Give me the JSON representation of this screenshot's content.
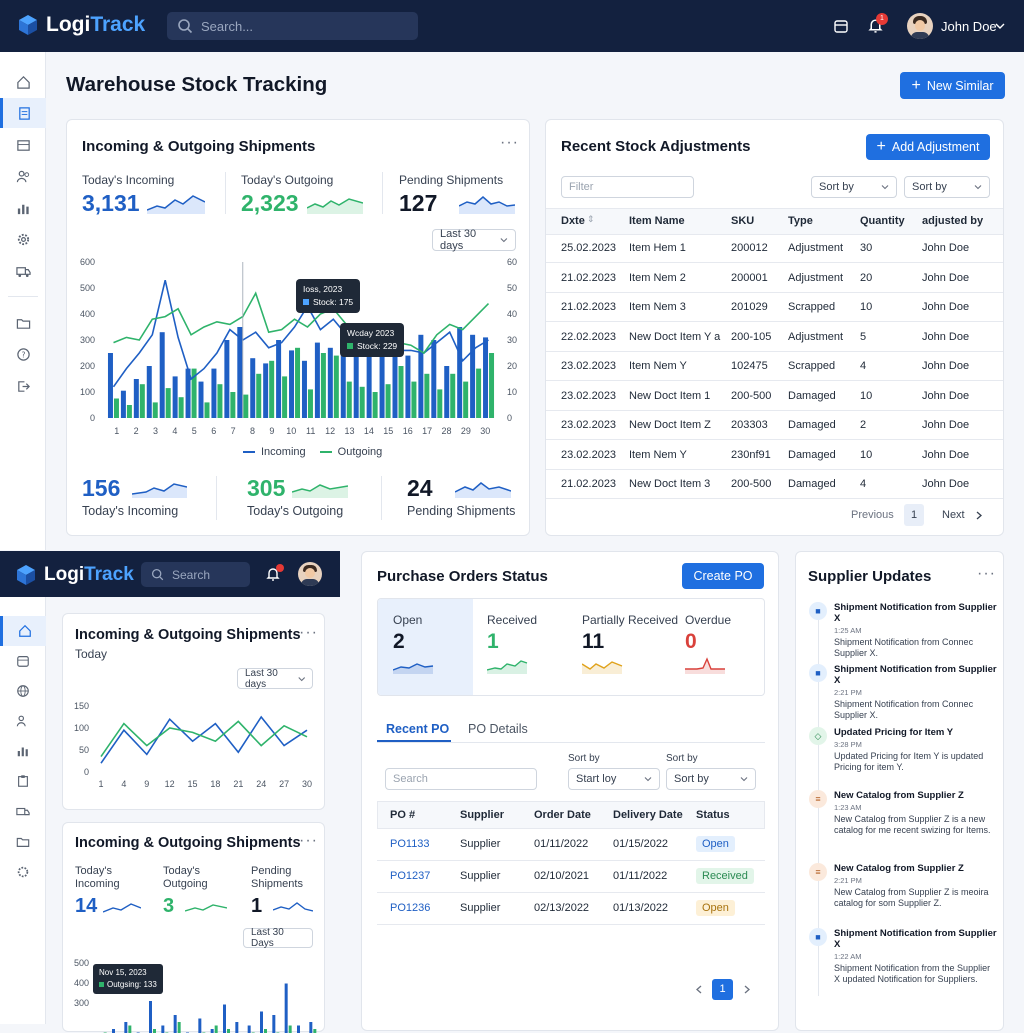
{
  "app": {
    "brand_a": "Logi",
    "brand_b": "Track",
    "search_placeholder": "Search...",
    "user_name": "John Doe",
    "notif_count": "1"
  },
  "page": {
    "title": "Warehouse Stock Tracking",
    "new_button": "New Similar"
  },
  "shipments": {
    "title": "Incoming & Outgoing Shipments",
    "kpis": [
      {
        "label": "Today's Incoming",
        "value": "3,131",
        "color": "#1f5fc4"
      },
      {
        "label": "Today's Outgoing",
        "value": "2,323",
        "color": "#2fb36b"
      },
      {
        "label": "Pending Shipments",
        "value": "127",
        "color": "#111827"
      }
    ],
    "range": "Last 30 days",
    "tooltip1": {
      "title": "Ioss, 2023",
      "line": "Stock: 175"
    },
    "tooltip2": {
      "title": "Wcday 2023",
      "line": "Stock: 229"
    },
    "legend_in": "Incoming",
    "legend_out": "Outgoing",
    "bottom": [
      {
        "value": "156",
        "label": "Today's Incoming",
        "color": "#1f5fc4"
      },
      {
        "value": "305",
        "label": "Today's Outgoing",
        "color": "#2fb36b"
      },
      {
        "value": "24",
        "label": "Pending Shipments",
        "color": "#111827"
      }
    ]
  },
  "chart_data": [
    {
      "type": "bar",
      "categories": [
        "1",
        "2",
        "3",
        "4",
        "5",
        "6",
        "7",
        "8",
        "9",
        "10",
        "11",
        "12",
        "13",
        "14",
        "15",
        "16",
        "17",
        "18",
        "19",
        "20",
        "21",
        "22",
        "23",
        "24",
        "25",
        "26",
        "27",
        "28",
        "29",
        "30"
      ],
      "x_tick_labels": [
        "1",
        "2",
        "3",
        "4",
        "5",
        "6",
        "7",
        "8",
        "9",
        "10",
        "11",
        "12",
        "13",
        "14",
        "15",
        "16",
        "17",
        "28",
        "29",
        "30"
      ],
      "y_ticks_left": [
        "600",
        "500",
        "400",
        "300",
        "200",
        "100",
        "0"
      ],
      "y_ticks_right": [
        "60",
        "50",
        "40",
        "30",
        "20",
        "10",
        "0"
      ],
      "ylim": [
        0,
        600
      ],
      "series": [
        {
          "name": "Incoming",
          "color": "#1f5fc4",
          "values": [
            250,
            105,
            150,
            200,
            330,
            160,
            190,
            140,
            190,
            300,
            350,
            230,
            210,
            300,
            260,
            220,
            290,
            270,
            300,
            340,
            270,
            310,
            280,
            240,
            320,
            300,
            200,
            350,
            320,
            310
          ]
        },
        {
          "name": "Outgoing",
          "color": "#2fb36b",
          "values": [
            75,
            50,
            130,
            60,
            115,
            80,
            190,
            60,
            130,
            100,
            90,
            170,
            220,
            160,
            270,
            110,
            250,
            240,
            140,
            120,
            100,
            130,
            200,
            140,
            170,
            110,
            170,
            140,
            190,
            250
          ]
        },
        {
          "name": "Incoming trend",
          "color": "#1f5fc4",
          "values": [
            120,
            190,
            250,
            320,
            530,
            310,
            150,
            190,
            250,
            340,
            300,
            330,
            270,
            290,
            350,
            430,
            340,
            380,
            320,
            300,
            290,
            280,
            260,
            260,
            250,
            290,
            330,
            220,
            270,
            300
          ]
        },
        {
          "name": "Outgoing trend",
          "color": "#2fb36b",
          "values": [
            290,
            310,
            300,
            380,
            390,
            420,
            320,
            350,
            370,
            360,
            390,
            480,
            330,
            340,
            380,
            350,
            400,
            420,
            360,
            330,
            300,
            310,
            290,
            280,
            250,
            320,
            360,
            340,
            390,
            440
          ]
        }
      ]
    },
    {
      "type": "line",
      "categories": [
        "1",
        "4",
        "9",
        "12",
        "15",
        "18",
        "21",
        "24",
        "27",
        "30"
      ],
      "y_ticks": [
        "150",
        "100",
        "50",
        "0"
      ],
      "ylim": [
        0,
        150
      ],
      "series": [
        {
          "color": "#1f5fc4",
          "values": [
            20,
            95,
            40,
            120,
            70,
            110,
            45,
            125,
            60,
            95
          ]
        },
        {
          "color": "#2fb36b",
          "values": [
            35,
            110,
            60,
            100,
            90,
            70,
            115,
            60,
            105,
            80
          ]
        }
      ]
    },
    {
      "type": "bar",
      "y_ticks": [
        "500",
        "400",
        "300"
      ],
      "ylim": [
        300,
        500
      ],
      "series": [
        {
          "color": "#1f5fc4",
          "values": [
            320,
            340,
            360,
            330,
            420,
            350,
            380,
            330,
            370,
            340,
            410,
            360,
            350,
            390,
            380,
            470,
            350,
            360
          ]
        },
        {
          "color": "#2fb36b",
          "values": [
            330,
            310,
            350,
            320,
            340,
            330,
            360,
            320,
            330,
            350,
            340,
            320,
            330,
            340,
            330,
            350,
            320,
            340
          ]
        }
      ]
    }
  ],
  "adjustments": {
    "title": "Recent Stock Adjustments",
    "add_button": "Add Adjustment",
    "filter_placeholder": "Filter",
    "sort1": "Sort by",
    "sort2": "Sort by",
    "headers": [
      "Dxte",
      "Item Name",
      "SKU",
      "Type",
      "Quantity",
      "adjusted by"
    ],
    "rows": [
      [
        "25.02.2023",
        "Item Hem 1",
        "200012",
        "Adjustment",
        "30",
        "John Doe"
      ],
      [
        "21.02.2023",
        "Item Nem 2",
        "200001",
        "Adjustment",
        "20",
        "John Doe"
      ],
      [
        "21.02.2023",
        "Item Nem 3",
        "201029",
        "Scrapped",
        "10",
        "John Doe"
      ],
      [
        "22.02.2023",
        "New Doct Item Y a",
        "200-105",
        "Adjustment",
        "5",
        "John Doe"
      ],
      [
        "23.02.2023",
        "Item Nem Y",
        "102475",
        "Scrapped",
        "4",
        "John Doe"
      ],
      [
        "23.02.2023",
        "New Doct Item 1",
        "200-500",
        "Damaged",
        "10",
        "John Doe"
      ],
      [
        "23.02.2023",
        "New Doct Item Z",
        "203303",
        "Damaged",
        "2",
        "John Doe"
      ],
      [
        "23.02.2023",
        "Item Nem Y",
        "230nf91",
        "Damaged",
        "10",
        "John Doe"
      ],
      [
        "21.02.2023",
        "New Doct Item 3",
        "200-500",
        "Damaged",
        "4",
        "John Doe"
      ]
    ],
    "prev": "Previous",
    "page": "1",
    "next": "Next"
  },
  "mini": {
    "brand_a": "Logi",
    "brand_b": "Track",
    "search": "Search",
    "card1_title": "Incoming & Outgoing Shipments",
    "card1_sub": "Today",
    "card1_range": "Last 30 days",
    "card2_title": "Incoming & Outgoing Shipments",
    "kpis": [
      {
        "label": "Today's Incoming",
        "value": "14",
        "color": "#1f5fc4"
      },
      {
        "label": "Today's Outgoing",
        "value": "3",
        "color": "#2fb36b"
      },
      {
        "label": "Pending Shipments",
        "value": "1",
        "color": "#111827"
      }
    ],
    "card2_range": "Last 30 Days",
    "tooltip_title": "Nov 15, 2023",
    "tooltip_line": "Outgsing: 133"
  },
  "po": {
    "title": "Purchase Orders Status",
    "create_button": "Create PO",
    "stats": [
      {
        "label": "Open",
        "value": "2",
        "color": "#111827",
        "spark": "#1f5fc4"
      },
      {
        "label": "Received",
        "value": "1",
        "color": "#2fb36b",
        "spark": "#2fb36b"
      },
      {
        "label": "Partially Received",
        "value": "11",
        "color": "#111827",
        "spark": "#e0a21b"
      },
      {
        "label": "Overdue",
        "value": "0",
        "color": "#d9413b",
        "spark": "#d9413b"
      }
    ],
    "tabs": [
      "Recent PO",
      "PO Details"
    ],
    "search_placeholder": "Search",
    "sort_label1": "Sort by",
    "sort_value1": "Start loy",
    "sort_label2": "Sort by",
    "sort_value2": "Sort by",
    "headers": [
      "PO #",
      "Supplier",
      "Order Date",
      "Delivery Date",
      "Status"
    ],
    "rows": [
      {
        "po": "PO1133",
        "supplier": "Supplier",
        "order": "01/11/2022",
        "delivery": "01/15/2022",
        "status": "Open",
        "status_bg": "#e3effd",
        "status_fg": "#1f5fc4"
      },
      {
        "po": "PO1237",
        "supplier": "Supplier",
        "order": "02/10/2021",
        "delivery": "01/11/2022",
        "status": "Received",
        "status_bg": "#e2f5e9",
        "status_fg": "#2a8a52"
      },
      {
        "po": "PO1236",
        "supplier": "Supplier",
        "order": "02/13/2022",
        "delivery": "01/13/2022",
        "status": "Open",
        "status_bg": "#fdf0d6",
        "status_fg": "#a8730f"
      }
    ],
    "page": "1"
  },
  "supplier": {
    "title": "Supplier Updates",
    "items": [
      {
        "title": "Shipment Notification from Supplier X",
        "time": "1:25 AM",
        "body": "Shipment Notification from Connec Supplier X.",
        "icon": "truck-icon",
        "bg": "#e3effd",
        "fg": "#1f5fc4"
      },
      {
        "title": "Shipment Notification from Supplier X",
        "time": "2:21 PM",
        "body": "Shipment Notification from Connec Supplier X.",
        "icon": "truck-icon",
        "bg": "#e3effd",
        "fg": "#1f5fc4"
      },
      {
        "title": "Updated Pricing for Item Y",
        "time": "3:28 PM",
        "body": "Updated Pricing for Item Y is updated Pricing for item Y.",
        "icon": "tag-icon",
        "bg": "#e2f5e9",
        "fg": "#2a8a52"
      },
      {
        "title": "New Catalog from Supplier Z",
        "time": "1:23 AM",
        "body": "New Catalog from Supplier Z is a new catalog for me recent swizing for Items.",
        "icon": "catalog-icon",
        "bg": "#fbe9dc",
        "fg": "#b45f23"
      },
      {
        "title": "New Catalog from Supplier Z",
        "time": "2:21 PM",
        "body": "New Catalog from Supplier Z is meoira catalog for som Supplier Z.",
        "icon": "catalog-icon",
        "bg": "#fbe9dc",
        "fg": "#b45f23"
      },
      {
        "title": "Shipment Notification from Supplier X",
        "time": "1:22 AM",
        "body": "Shipment Notification from the Supplier X updated Notification for Suppliers.",
        "icon": "truck-icon",
        "bg": "#e3effd",
        "fg": "#1f5fc4"
      }
    ]
  }
}
